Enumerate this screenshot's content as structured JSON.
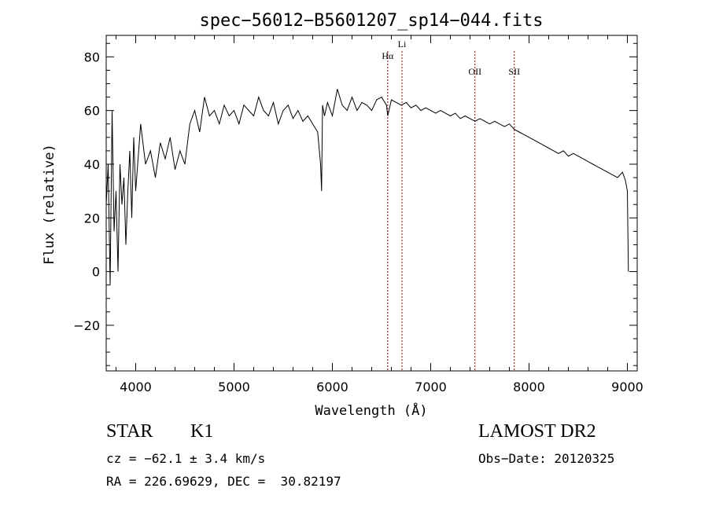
{
  "chart_data": {
    "type": "line",
    "title": "spec−56012−B5601207_sp14−044.fits",
    "xlabel": "Wavelength (Å)",
    "ylabel": "Flux (relative)",
    "xlim": [
      3700,
      9100
    ],
    "ylim": [
      -37,
      88
    ],
    "xticks": [
      4000,
      5000,
      6000,
      7000,
      8000,
      9000
    ],
    "yticks": [
      -20,
      0,
      20,
      40,
      60,
      80
    ],
    "ytick_labels": [
      "−20",
      "0",
      "20",
      "40",
      "60",
      "80"
    ],
    "grid": false,
    "legend": "none",
    "line_color": "#000000",
    "marker_color": "#8b0000",
    "series": [
      {
        "x": [
          3700,
          3720,
          3740,
          3760,
          3780,
          3800,
          3820,
          3840,
          3860,
          3880,
          3900,
          3920,
          3940,
          3960,
          3980,
          4000,
          4050,
          4100,
          4150,
          4200,
          4250,
          4300,
          4350,
          4400,
          4450,
          4500,
          4550,
          4600,
          4650,
          4700,
          4750,
          4800,
          4850,
          4900,
          4950,
          5000,
          5050,
          5100,
          5150,
          5200,
          5250,
          5300,
          5350,
          5400,
          5450,
          5500,
          5550,
          5600,
          5650,
          5700,
          5750,
          5800,
          5850,
          5880,
          5890,
          5900,
          5920,
          5950,
          6000,
          6050,
          6100,
          6150,
          6200,
          6250,
          6300,
          6350,
          6400,
          6450,
          6500,
          6550,
          6563,
          6600,
          6650,
          6700,
          6750,
          6800,
          6850,
          6900,
          6950,
          7000,
          7050,
          7100,
          7150,
          7200,
          7250,
          7300,
          7350,
          7400,
          7450,
          7500,
          7550,
          7600,
          7650,
          7700,
          7750,
          7800,
          7850,
          7900,
          7950,
          8000,
          8050,
          8100,
          8150,
          8200,
          8250,
          8300,
          8350,
          8400,
          8450,
          8500,
          8550,
          8600,
          8650,
          8700,
          8750,
          8800,
          8850,
          8900,
          8950,
          8980,
          9000,
          9010
        ],
        "y": [
          25,
          40,
          -5,
          60,
          15,
          30,
          0,
          40,
          25,
          35,
          10,
          30,
          45,
          20,
          50,
          30,
          55,
          40,
          45,
          35,
          48,
          42,
          50,
          38,
          45,
          40,
          55,
          60,
          52,
          65,
          58,
          60,
          55,
          62,
          58,
          60,
          55,
          62,
          60,
          58,
          65,
          60,
          58,
          63,
          55,
          60,
          62,
          57,
          60,
          56,
          58,
          55,
          52,
          40,
          30,
          62,
          58,
          63,
          58,
          68,
          62,
          60,
          65,
          60,
          63,
          62,
          60,
          64,
          65,
          62,
          58,
          64,
          63,
          62,
          63,
          61,
          62,
          60,
          61,
          60,
          59,
          60,
          59,
          58,
          59,
          57,
          58,
          57,
          56,
          57,
          56,
          55,
          56,
          55,
          54,
          55,
          53,
          52,
          51,
          50,
          49,
          48,
          47,
          46,
          45,
          44,
          45,
          43,
          44,
          43,
          42,
          41,
          40,
          39,
          38,
          37,
          36,
          35,
          37,
          34,
          30,
          0
        ]
      }
    ],
    "annotations": [
      {
        "label": "Hα",
        "x": 6563
      },
      {
        "label": "Li",
        "x": 6708
      },
      {
        "label": "OII",
        "x": 7450
      },
      {
        "label": "SII",
        "x": 7850
      }
    ]
  },
  "info": {
    "class_label": "STAR",
    "subclass_label": "K1",
    "survey_label": "LAMOST DR2",
    "cz_line": "cz = −62.1 ± 3.4 km/s",
    "obs_date": "Obs−Date: 20120325",
    "radec_line": "RA = 226.69629, DEC =  30.82197"
  }
}
